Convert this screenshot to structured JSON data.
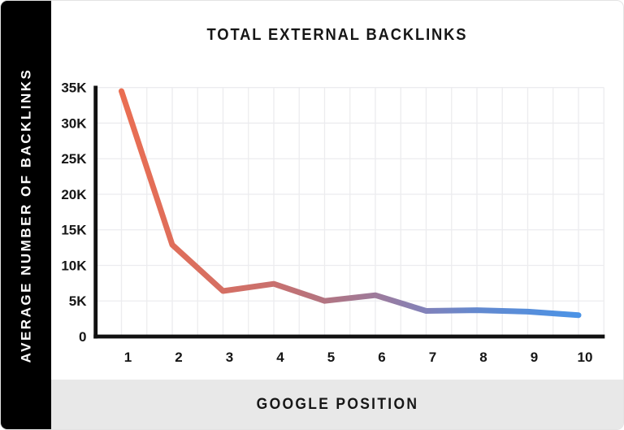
{
  "chart": {
    "title": "TOTAL EXTERNAL BACKLINKS",
    "y_axis_title": "AVERAGE NUMBER OF BACKLINKS",
    "x_axis_title": "GOOGLE POSITION"
  },
  "chart_data": {
    "type": "line",
    "title": "TOTAL EXTERNAL BACKLINKS",
    "xlabel": "GOOGLE POSITION",
    "ylabel": "AVERAGE NUMBER OF BACKLINKS",
    "x": [
      1,
      2,
      3,
      4,
      5,
      6,
      7,
      8,
      9,
      10
    ],
    "values": [
      34500,
      12900,
      6400,
      7400,
      5000,
      5800,
      3600,
      3700,
      3500,
      3000
    ],
    "x_tick_labels": [
      "1",
      "2",
      "3",
      "4",
      "5",
      "6",
      "7",
      "8",
      "9",
      "10"
    ],
    "y_ticks": [
      0,
      5000,
      10000,
      15000,
      20000,
      25000,
      30000,
      35000
    ],
    "y_tick_labels": [
      "0",
      "5K",
      "10K",
      "15K",
      "20K",
      "25K",
      "30K",
      "35K"
    ],
    "ylim": [
      0,
      35000
    ],
    "xlim": [
      1,
      10
    ],
    "grid": true,
    "legend": "none",
    "line_gradient": [
      {
        "offset": 0.0,
        "color": "#ea6e52"
      },
      {
        "offset": 0.22,
        "color": "#d56f63"
      },
      {
        "offset": 0.33,
        "color": "#c9706e"
      },
      {
        "offset": 0.44,
        "color": "#b37480"
      },
      {
        "offset": 0.56,
        "color": "#9d7b9c"
      },
      {
        "offset": 0.67,
        "color": "#8082bb"
      },
      {
        "offset": 0.78,
        "color": "#6389cf"
      },
      {
        "offset": 1.0,
        "color": "#4b93e6"
      }
    ],
    "colors": {
      "sidebar_bg": "#000000",
      "xbar_bg": "#e8e8e8",
      "grid": "#ececef",
      "axis": "#111111",
      "text": "#161616"
    }
  }
}
